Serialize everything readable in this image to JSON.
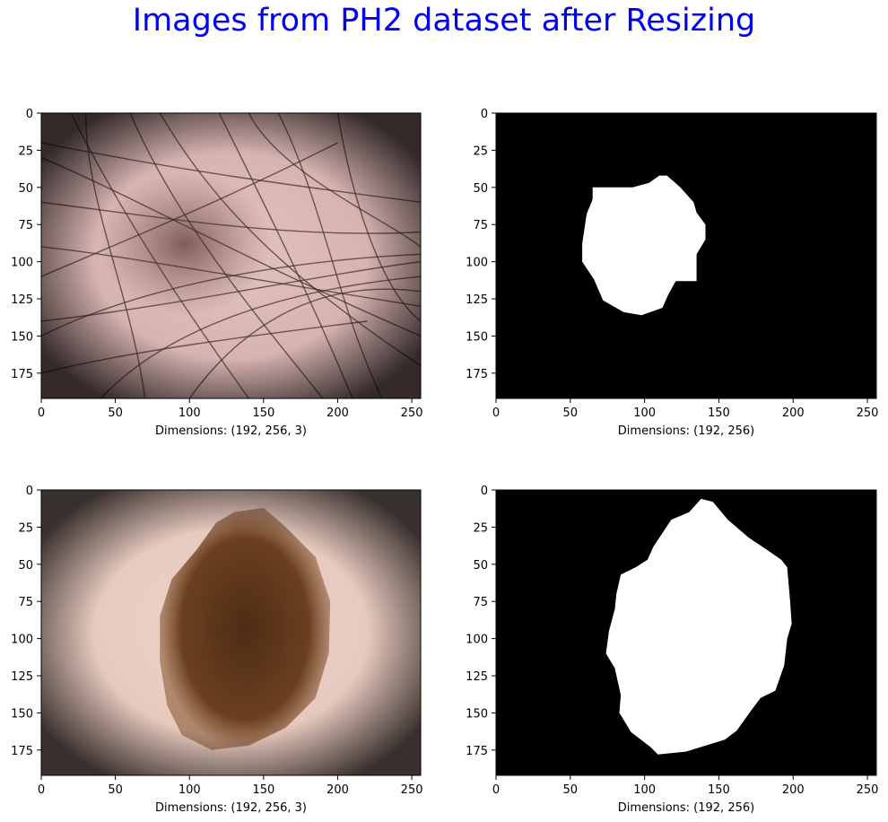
{
  "title": "Images from PH2 dataset after Resizing",
  "colors": {
    "title": "#0000ee",
    "mask_background": "#000000",
    "mask_foreground": "#ffffff",
    "skin_1": "#d8b6b4",
    "skin_2": "#ead0c6",
    "lesion_1": "#7a5a54",
    "lesion_2": "#5a3418",
    "hair": "#3a2a24"
  },
  "chart_data": [
    {
      "type": "image",
      "content": "dermoscopy image, hairy skin with light lesion",
      "xlabel": "Dimensions: (192, 256, 3)",
      "xlim": [
        0,
        256
      ],
      "ylim": [
        192,
        0
      ],
      "xticks": [
        0,
        50,
        100,
        150,
        200,
        250
      ],
      "yticks": [
        0,
        25,
        50,
        75,
        100,
        125,
        150,
        175
      ]
    },
    {
      "type": "image",
      "content": "binary segmentation mask",
      "xlabel": "Dimensions: (192, 256)",
      "xlim": [
        0,
        256
      ],
      "ylim": [
        192,
        0
      ],
      "xticks": [
        0,
        50,
        100,
        150,
        200,
        250
      ],
      "yticks": [
        0,
        25,
        50,
        75,
        100,
        125,
        150,
        175
      ],
      "mask_outline": [
        [
          65,
          50
        ],
        [
          92,
          50
        ],
        [
          103,
          47
        ],
        [
          110,
          42
        ],
        [
          115,
          42
        ],
        [
          124,
          50
        ],
        [
          133,
          60
        ],
        [
          135,
          67
        ],
        [
          141,
          75
        ],
        [
          141,
          85
        ],
        [
          135,
          95
        ],
        [
          135,
          113
        ],
        [
          121,
          113
        ],
        [
          116,
          122
        ],
        [
          112,
          131
        ],
        [
          98,
          136
        ],
        [
          86,
          134
        ],
        [
          72,
          126
        ],
        [
          66,
          112
        ],
        [
          58,
          100
        ],
        [
          58,
          88
        ],
        [
          61,
          68
        ],
        [
          65,
          58
        ]
      ]
    },
    {
      "type": "image",
      "content": "dermoscopy image, dark brown pigmented lesion",
      "xlabel": "Dimensions: (192, 256, 3)",
      "xlim": [
        0,
        256
      ],
      "ylim": [
        192,
        0
      ],
      "xticks": [
        0,
        50,
        100,
        150,
        200,
        250
      ],
      "yticks": [
        0,
        25,
        50,
        75,
        100,
        125,
        150,
        175
      ]
    },
    {
      "type": "image",
      "content": "binary segmentation mask",
      "xlabel": "Dimensions: (192, 256)",
      "xlim": [
        0,
        256
      ],
      "ylim": [
        192,
        0
      ],
      "xticks": [
        0,
        50,
        100,
        150,
        200,
        250
      ],
      "yticks": [
        0,
        25,
        50,
        75,
        100,
        125,
        150,
        175
      ],
      "mask_outline": [
        [
          130,
          15
        ],
        [
          138,
          6
        ],
        [
          146,
          8
        ],
        [
          156,
          20
        ],
        [
          170,
          32
        ],
        [
          182,
          40
        ],
        [
          192,
          47
        ],
        [
          196,
          52
        ],
        [
          198,
          75
        ],
        [
          199,
          90
        ],
        [
          196,
          100
        ],
        [
          194,
          118
        ],
        [
          188,
          135
        ],
        [
          178,
          140
        ],
        [
          172,
          148
        ],
        [
          162,
          162
        ],
        [
          154,
          168
        ],
        [
          141,
          172
        ],
        [
          128,
          176
        ],
        [
          109,
          178
        ],
        [
          104,
          173
        ],
        [
          91,
          163
        ],
        [
          83,
          150
        ],
        [
          84,
          138
        ],
        [
          80,
          120
        ],
        [
          74,
          110
        ],
        [
          76,
          95
        ],
        [
          80,
          80
        ],
        [
          81,
          70
        ],
        [
          84,
          57
        ],
        [
          94,
          52
        ],
        [
          102,
          47
        ],
        [
          106,
          38
        ],
        [
          112,
          29
        ],
        [
          118,
          20
        ]
      ]
    }
  ]
}
